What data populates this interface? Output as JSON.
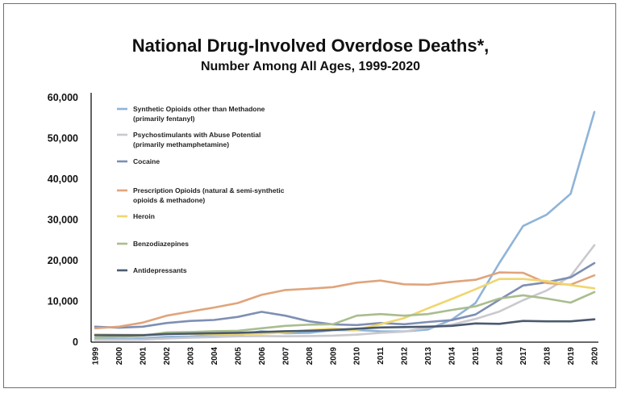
{
  "chart_data": {
    "type": "line",
    "title": "National Drug-Involved Overdose Deaths*,",
    "subtitle": "Number Among All Ages, 1999-2020",
    "xlabel": "",
    "ylabel": "",
    "ylim": [
      0,
      60000
    ],
    "yticks": [
      "0",
      "10,000",
      "20,000",
      "30,000",
      "40,000",
      "50,000",
      "60,000"
    ],
    "x": [
      "1999",
      "2000",
      "2001",
      "2002",
      "2003",
      "2004",
      "2005",
      "2006",
      "2007",
      "2008",
      "2009",
      "2010",
      "2011",
      "2012",
      "2013",
      "2014",
      "2015",
      "2016",
      "2017",
      "2018",
      "2019",
      "2020"
    ],
    "legend_position": "top-left",
    "series": [
      {
        "legend": [
          "Synthetic Opioids other than Methadone",
          "(primarily fentanyl)"
        ],
        "color": "#8fb4d8",
        "values": [
          730,
          780,
          960,
          1300,
          1400,
          1660,
          1740,
          2700,
          2200,
          2300,
          2950,
          3000,
          2670,
          2630,
          3100,
          5500,
          9600,
          19400,
          28500,
          31300,
          36400,
          56500
        ]
      },
      {
        "legend": [
          "Psychostimulants with Abuse Potential",
          "(primarily methamphetamine)"
        ],
        "color": "#c9c9cf",
        "values": [
          550,
          580,
          610,
          900,
          1100,
          1250,
          1450,
          1500,
          1450,
          1500,
          1600,
          1850,
          2270,
          2600,
          3600,
          4300,
          5700,
          7500,
          10300,
          12700,
          16200,
          23800
        ]
      },
      {
        "legend": [
          "Cocaine"
        ],
        "color": "#7f8fb3",
        "values": [
          3800,
          3550,
          3800,
          4700,
          5200,
          5450,
          6200,
          7450,
          6500,
          5100,
          4350,
          4200,
          4700,
          4400,
          4950,
          5400,
          6800,
          10400,
          13900,
          14700,
          15900,
          19400
        ]
      },
      {
        "legend": [
          "Prescription Opioids (natural & semi-synthetic",
          "opioids & methadone)"
        ],
        "color": "#e0a47c",
        "values": [
          3400,
          3800,
          4800,
          6500,
          7500,
          8500,
          9600,
          11600,
          12800,
          13100,
          13500,
          14600,
          15100,
          14200,
          14100,
          14800,
          15300,
          17100,
          17000,
          14500,
          14100,
          16400
        ]
      },
      {
        "legend": [
          "Heroin"
        ],
        "color": "#f0d66e",
        "values": [
          1950,
          1850,
          1800,
          2100,
          2100,
          1900,
          2000,
          2100,
          2400,
          3000,
          3300,
          3000,
          4400,
          5900,
          8300,
          10600,
          13000,
          15500,
          15500,
          15000,
          14000,
          13200
        ]
      },
      {
        "legend": [
          "Benzodiazepines"
        ],
        "color": "#a9bd8e",
        "values": [
          1100,
          1300,
          1600,
          2400,
          2500,
          2700,
          2800,
          3400,
          4000,
          4300,
          4400,
          6500,
          6900,
          6500,
          6900,
          7900,
          8800,
          10700,
          11500,
          10700,
          9700,
          12300
        ]
      },
      {
        "legend": [
          "Antidepressants"
        ],
        "color": "#4b5a6e",
        "values": [
          1700,
          1700,
          1700,
          2000,
          2100,
          2200,
          2300,
          2500,
          2700,
          2800,
          3000,
          3300,
          3600,
          3700,
          3800,
          4000,
          4600,
          4500,
          5200,
          5100,
          5100,
          5600
        ]
      }
    ]
  }
}
